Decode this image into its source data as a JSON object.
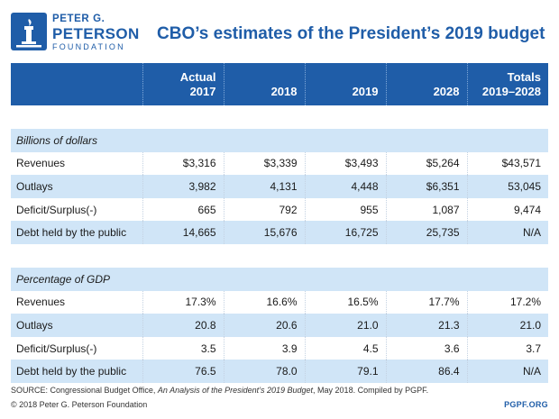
{
  "header": {
    "logo_line1": "PETER G.",
    "logo_line2": "PETERSON",
    "logo_line3": "FOUNDATION",
    "title": "CBO’s estimates of the President’s 2019 budget"
  },
  "table": {
    "columns": [
      {
        "line1": "Actual",
        "line2": "2017"
      },
      {
        "line1": "",
        "line2": "2018"
      },
      {
        "line1": "",
        "line2": "2019"
      },
      {
        "line1": "",
        "line2": "2028"
      },
      {
        "line1": "Totals",
        "line2": "2019–2028"
      }
    ],
    "section1": {
      "label": "Billions of dollars",
      "rows": [
        {
          "label": "Revenues",
          "values": [
            "$3,316",
            "$3,339",
            "$3,493",
            "$5,264",
            "$43,571"
          ]
        },
        {
          "label": "Outlays",
          "values": [
            "3,982",
            "4,131",
            "4,448",
            "$6,351",
            "53,045"
          ]
        },
        {
          "label": "Deficit/Surplus(-)",
          "values": [
            "665",
            "792",
            "955",
            "1,087",
            "9,474"
          ]
        },
        {
          "label": "Debt held by the public",
          "values": [
            "14,665",
            "15,676",
            "16,725",
            "25,735",
            "N/A"
          ]
        }
      ]
    },
    "section2": {
      "label": "Percentage of GDP",
      "rows": [
        {
          "label": "Revenues",
          "values": [
            "17.3%",
            "16.6%",
            "16.5%",
            "17.7%",
            "17.2%"
          ]
        },
        {
          "label": "Outlays",
          "values": [
            "20.8",
            "20.6",
            "21.0",
            "21.3",
            "21.0"
          ]
        },
        {
          "label": "Deficit/Surplus(-)",
          "values": [
            "3.5",
            "3.9",
            "4.5",
            "3.6",
            "3.7"
          ]
        },
        {
          "label": "Debt held by the public",
          "values": [
            "76.5",
            "78.0",
            "79.1",
            "86.4",
            "N/A"
          ]
        }
      ]
    }
  },
  "footer": {
    "source_prefix": "SOURCE: Congressional Budget Office, ",
    "source_title": "An Analysis of the President’s 2019 Budget",
    "source_suffix": ", May 2018. Compiled by PGPF.",
    "copyright": "© 2018 Peter G. Peterson Foundation",
    "site": "PGPF.ORG"
  },
  "colors": {
    "brand_blue": "#1f5da8",
    "row_shade": "#d0e5f7"
  }
}
